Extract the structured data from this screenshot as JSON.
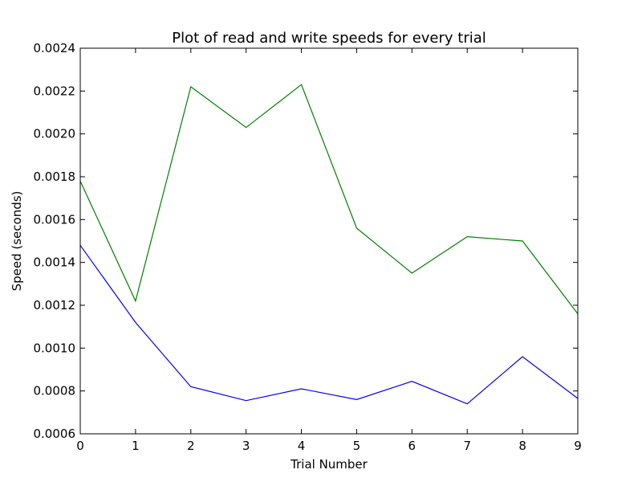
{
  "chart_data": {
    "type": "line",
    "title": "Plot of read and write speeds for every trial",
    "xlabel": "Trial Number",
    "ylabel": "Speed (seconds)",
    "x": [
      0,
      1,
      2,
      3,
      4,
      5,
      6,
      7,
      8,
      9
    ],
    "xlim": [
      0,
      9
    ],
    "ylim": [
      0.0006,
      0.0024
    ],
    "x_ticks": [
      "0",
      "1",
      "2",
      "3",
      "4",
      "5",
      "6",
      "7",
      "8",
      "9"
    ],
    "y_ticks": [
      "0.0006",
      "0.0008",
      "0.0010",
      "0.0012",
      "0.0014",
      "0.0016",
      "0.0018",
      "0.0020",
      "0.0022",
      "0.0024"
    ],
    "grid": false,
    "series": [
      {
        "color": "#0000ff",
        "values": [
          0.00148,
          0.00112,
          0.00082,
          0.000755,
          0.00081,
          0.00076,
          0.000845,
          0.00074,
          0.00096,
          0.000765
        ]
      },
      {
        "color": "#008000",
        "values": [
          0.00178,
          0.00122,
          0.00222,
          0.00203,
          0.00223,
          0.00156,
          0.00135,
          0.00152,
          0.0015,
          0.00116
        ]
      }
    ]
  }
}
